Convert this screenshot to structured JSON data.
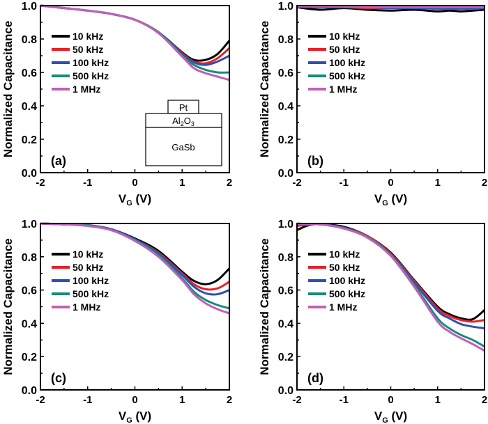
{
  "chart_data": [
    {
      "type": "line",
      "panel_label": "(a)",
      "xlabel": "V",
      "xlabel_sub": "G",
      "xlabel_unit": " (V)",
      "ylabel": "Normalized Capacitance",
      "xlim": [
        -2,
        2
      ],
      "ylim": [
        0,
        1.0
      ],
      "xticks": [
        "-2",
        "-1",
        "0",
        "1",
        "2"
      ],
      "yticks": [
        "0.0",
        "0.2",
        "0.4",
        "0.6",
        "0.8",
        "1.0"
      ],
      "x": [
        -2,
        -1.5,
        -1,
        -0.5,
        0,
        0.5,
        1,
        1.25,
        1.5,
        1.75,
        2
      ],
      "legend_position": "left",
      "series": [
        {
          "name": "10 kHz",
          "color": "#000000",
          "values": [
            1.0,
            0.985,
            0.97,
            0.95,
            0.915,
            0.84,
            0.72,
            0.675,
            0.675,
            0.71,
            0.79
          ]
        },
        {
          "name": "50 kHz",
          "color": "#e8202a",
          "values": [
            1.0,
            0.985,
            0.97,
            0.95,
            0.915,
            0.84,
            0.715,
            0.665,
            0.655,
            0.685,
            0.745
          ]
        },
        {
          "name": "100 kHz",
          "color": "#3050b0",
          "values": [
            1.0,
            0.985,
            0.97,
            0.95,
            0.915,
            0.84,
            0.71,
            0.66,
            0.645,
            0.665,
            0.7
          ]
        },
        {
          "name": "500 kHz",
          "color": "#1a8a7a",
          "values": [
            1.0,
            0.985,
            0.97,
            0.95,
            0.915,
            0.84,
            0.7,
            0.645,
            0.615,
            0.6,
            0.6
          ]
        },
        {
          "name": "1 MHz",
          "color": "#c060b8",
          "values": [
            1.0,
            0.985,
            0.97,
            0.95,
            0.915,
            0.835,
            0.695,
            0.625,
            0.595,
            0.575,
            0.555
          ]
        }
      ],
      "inset": {
        "top": "Pt",
        "middle": "Al",
        "middle_sub1": "2",
        "middle_mid": "O",
        "middle_sub2": "3",
        "bottom": "GaSb"
      }
    },
    {
      "type": "line",
      "panel_label": "(b)",
      "xlabel": "V",
      "xlabel_sub": "G",
      "xlabel_unit": " (V)",
      "ylabel": "Normalized Capacitance",
      "xlim": [
        -2,
        2
      ],
      "ylim": [
        0,
        1.0
      ],
      "xticks": [
        "-2",
        "-1",
        "0",
        "1",
        "2"
      ],
      "yticks": [
        "0.0",
        "0.2",
        "0.4",
        "0.6",
        "0.8",
        "1.0"
      ],
      "x": [
        -2,
        -1.5,
        -1,
        -0.5,
        0,
        0.5,
        1,
        1.25,
        1.5,
        1.75,
        2
      ],
      "legend_position": "left",
      "series": [
        {
          "name": "10 kHz",
          "color": "#000000",
          "values": [
            0.99,
            0.975,
            0.985,
            0.975,
            0.97,
            0.975,
            0.965,
            0.97,
            0.965,
            0.97,
            0.975
          ]
        },
        {
          "name": "50 kHz",
          "color": "#e8202a",
          "values": [
            0.995,
            0.99,
            0.99,
            0.985,
            0.985,
            0.985,
            0.98,
            0.98,
            0.98,
            0.98,
            0.985
          ]
        },
        {
          "name": "100 kHz",
          "color": "#3050b0",
          "values": [
            0.995,
            0.99,
            0.99,
            0.99,
            0.985,
            0.985,
            0.985,
            0.985,
            0.985,
            0.985,
            0.985
          ]
        },
        {
          "name": "500 kHz",
          "color": "#1a8a7a",
          "values": [
            0.995,
            0.995,
            0.99,
            0.99,
            0.99,
            0.99,
            0.99,
            0.99,
            0.99,
            0.99,
            0.99
          ]
        },
        {
          "name": "1 MHz",
          "color": "#c060b8",
          "values": [
            0.995,
            0.995,
            0.995,
            0.99,
            0.99,
            0.99,
            0.99,
            0.99,
            0.99,
            0.99,
            0.99
          ]
        }
      ]
    },
    {
      "type": "line",
      "panel_label": "(c)",
      "xlabel": "V",
      "xlabel_sub": "G",
      "xlabel_unit": " (V)",
      "ylabel": "Normalized Capacitance",
      "xlim": [
        -2,
        2
      ],
      "ylim": [
        0,
        1.0
      ],
      "xticks": [
        "-2",
        "-1",
        "0",
        "1",
        "2"
      ],
      "yticks": [
        "0.0",
        "0.2",
        "0.4",
        "0.6",
        "0.8",
        "1.0"
      ],
      "x": [
        -2,
        -1.5,
        -1,
        -0.5,
        0,
        0.5,
        1,
        1.25,
        1.5,
        1.75,
        2
      ],
      "legend_position": "left",
      "series": [
        {
          "name": "10 kHz",
          "color": "#000000",
          "values": [
            1.0,
            0.995,
            0.99,
            0.965,
            0.91,
            0.835,
            0.71,
            0.655,
            0.635,
            0.66,
            0.73
          ]
        },
        {
          "name": "50 kHz",
          "color": "#e8202a",
          "values": [
            1.0,
            0.995,
            0.99,
            0.965,
            0.905,
            0.825,
            0.7,
            0.635,
            0.605,
            0.61,
            0.65
          ]
        },
        {
          "name": "100 kHz",
          "color": "#3050b0",
          "values": [
            1.0,
            0.995,
            0.99,
            0.965,
            0.905,
            0.82,
            0.69,
            0.62,
            0.58,
            0.575,
            0.6
          ]
        },
        {
          "name": "500 kHz",
          "color": "#1a8a7a",
          "values": [
            1.0,
            0.995,
            0.99,
            0.96,
            0.9,
            0.81,
            0.67,
            0.59,
            0.54,
            0.51,
            0.49
          ]
        },
        {
          "name": "1 MHz",
          "color": "#c060b8",
          "values": [
            1.0,
            0.995,
            0.985,
            0.96,
            0.895,
            0.8,
            0.66,
            0.575,
            0.52,
            0.485,
            0.46
          ]
        }
      ]
    },
    {
      "type": "line",
      "panel_label": "(d)",
      "xlabel": "V",
      "xlabel_sub": "G",
      "xlabel_unit": " (V)",
      "ylabel": "Normalized Capacitance",
      "xlim": [
        -2,
        2
      ],
      "ylim": [
        0,
        1.0
      ],
      "xticks": [
        "-2",
        "-1",
        "0",
        "1",
        "2"
      ],
      "yticks": [
        "0.0",
        "0.2",
        "0.4",
        "0.6",
        "0.8",
        "1.0"
      ],
      "x": [
        -2,
        -1.75,
        -1.5,
        -1,
        -0.5,
        0,
        0.5,
        1,
        1.25,
        1.5,
        1.75,
        2
      ],
      "legend_position": "left",
      "series": [
        {
          "name": "10 kHz",
          "color": "#000000",
          "values": [
            0.96,
            0.99,
            0.995,
            0.98,
            0.925,
            0.825,
            0.66,
            0.5,
            0.455,
            0.43,
            0.425,
            0.48
          ]
        },
        {
          "name": "50 kHz",
          "color": "#e8202a",
          "values": [
            0.985,
            0.995,
            0.995,
            0.975,
            0.925,
            0.82,
            0.655,
            0.49,
            0.445,
            0.42,
            0.41,
            0.42
          ]
        },
        {
          "name": "100 kHz",
          "color": "#3050b0",
          "values": [
            1.0,
            0.995,
            0.995,
            0.975,
            0.92,
            0.815,
            0.645,
            0.475,
            0.43,
            0.395,
            0.38,
            0.37
          ]
        },
        {
          "name": "500 kHz",
          "color": "#1a8a7a",
          "values": [
            1.0,
            0.995,
            0.995,
            0.97,
            0.92,
            0.81,
            0.63,
            0.43,
            0.37,
            0.33,
            0.3,
            0.26
          ]
        },
        {
          "name": "1 MHz",
          "color": "#c060b8",
          "values": [
            1.0,
            0.995,
            0.995,
            0.97,
            0.915,
            0.805,
            0.62,
            0.41,
            0.35,
            0.31,
            0.275,
            0.235
          ]
        }
      ]
    }
  ]
}
